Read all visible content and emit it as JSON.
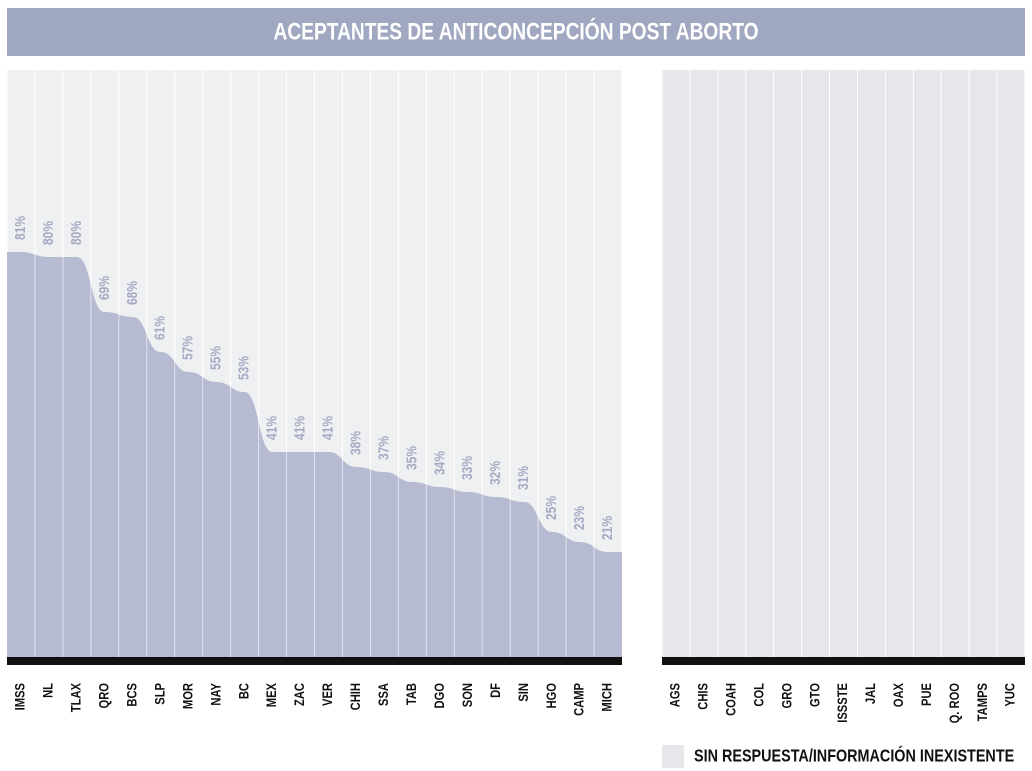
{
  "chart_data": {
    "type": "area",
    "title": "ACEPTANTES  DE ANTICONCEPCIÓN POST ABORTO",
    "categories": [
      "IMSS",
      "NL",
      "TLAX",
      "QRO",
      "BCS",
      "SLP",
      "MOR",
      "NAY",
      "BC",
      "MEX",
      "ZAC",
      "VER",
      "CHIH",
      "SSA",
      "TAB",
      "DGO",
      "SON",
      "DF",
      "SIN",
      "HGO",
      "CAMP",
      "MICH"
    ],
    "values": [
      81,
      80,
      80,
      69,
      68,
      61,
      57,
      55,
      53,
      41,
      41,
      41,
      38,
      37,
      35,
      34,
      33,
      32,
      31,
      25,
      23,
      21
    ],
    "value_labels": [
      "81%",
      "80%",
      "80%",
      "69%",
      "68%",
      "61%",
      "57%",
      "55%",
      "53%",
      "41%",
      "41%",
      "41%",
      "38%",
      "37%",
      "35%",
      "34%",
      "33%",
      "32%",
      "31%",
      "25%",
      "23%",
      "21%"
    ],
    "color": "#b6bbd1",
    "missing": {
      "categories": [
        "AGS",
        "CHIS",
        "COAH",
        "COL",
        "GRO",
        "GTO",
        "ISSSTE",
        "JAL",
        "OAX",
        "PUE",
        "Q. ROO",
        "TAMPS",
        "YUC"
      ],
      "label": "SIN RESPUESTA/INFORMACIÓN INEXISTENTE",
      "color": "#e6e7ea"
    }
  }
}
